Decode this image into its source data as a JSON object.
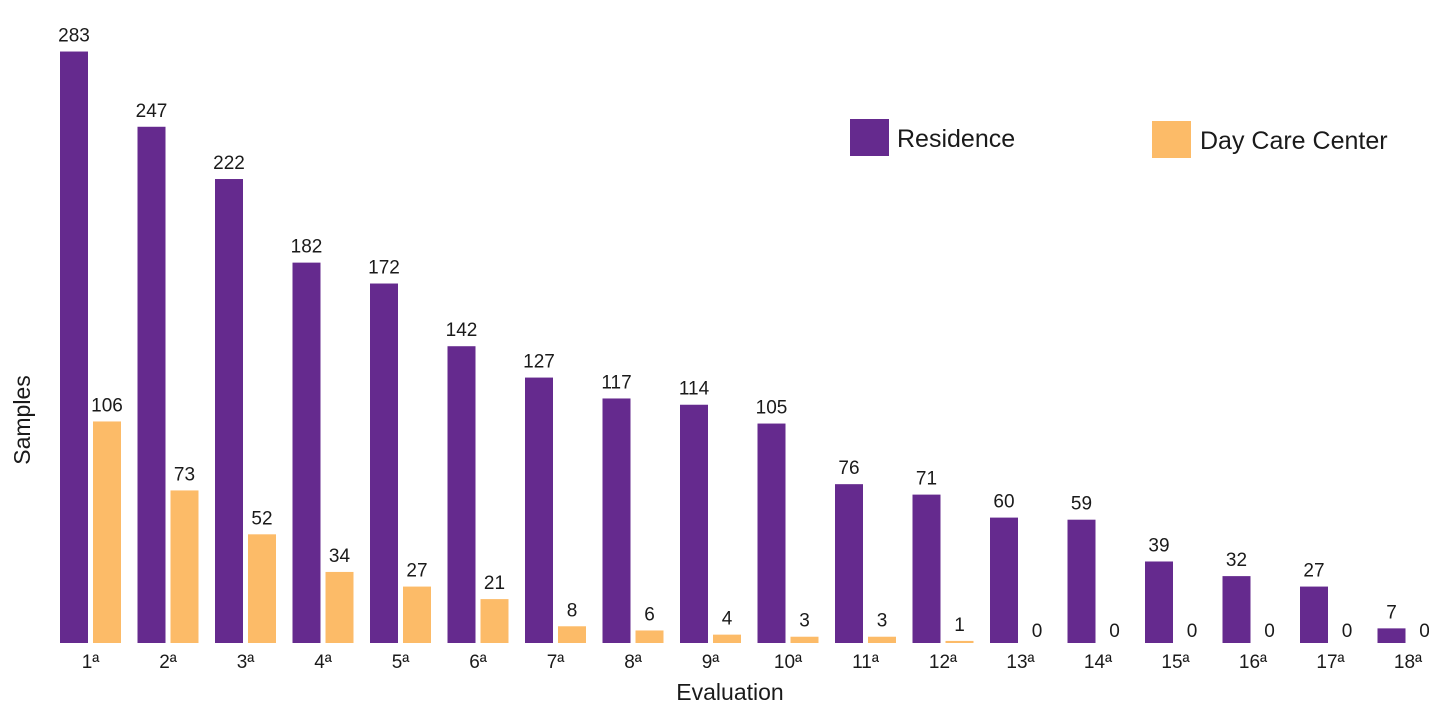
{
  "chart_data": {
    "type": "bar",
    "xlabel": "Evaluation",
    "ylabel": "Samples",
    "ylim": [
      0,
      300
    ],
    "grid": false,
    "legend_position": "top-right",
    "categories": [
      "1ª",
      "2ª",
      "3ª",
      "4ª",
      "5ª",
      "6ª",
      "7ª",
      "8ª",
      "9ª",
      "10ª",
      "11ª",
      "12ª",
      "13ª",
      "14ª",
      "15ª",
      "16ª",
      "17ª",
      "18ª"
    ],
    "series": [
      {
        "name": "Residence",
        "color": "#652a8e",
        "values": [
          283,
          247,
          222,
          182,
          172,
          142,
          127,
          117,
          114,
          105,
          76,
          71,
          60,
          59,
          39,
          32,
          27,
          7
        ]
      },
      {
        "name": "Day Care Center",
        "color": "#fcbb68",
        "values": [
          106,
          73,
          52,
          34,
          27,
          21,
          8,
          6,
          4,
          3,
          3,
          1,
          0,
          0,
          0,
          0,
          0,
          0
        ]
      }
    ]
  }
}
